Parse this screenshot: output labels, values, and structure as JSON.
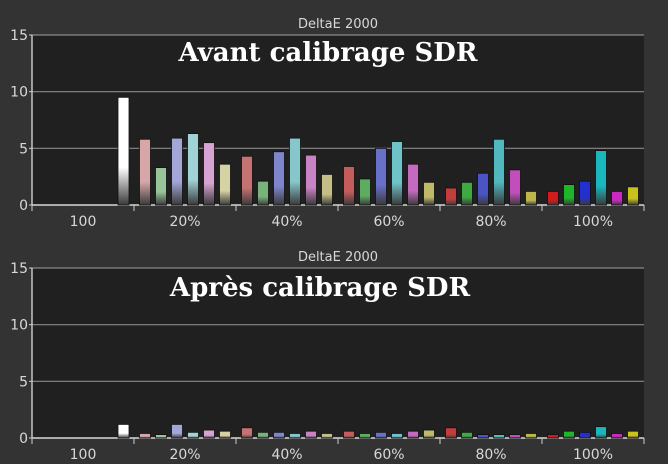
{
  "chart_data": [
    {
      "type": "bar",
      "title": "DeltaE 2000",
      "annotation": "Avant calibrage SDR",
      "ylim": [
        0,
        15
      ],
      "yticks": [
        0,
        5,
        10,
        15
      ],
      "grid": true,
      "groups": [
        {
          "label": "100",
          "values": [
            9.5
          ],
          "colors": [
            "#ffffff"
          ]
        },
        {
          "label": "20%",
          "values": [
            5.8,
            3.3,
            5.9,
            6.3,
            5.5,
            3.6
          ],
          "colors": [
            "#d7a7a7",
            "#98c49a",
            "#a2a7d7",
            "#a0d2d6",
            "#d7a3d3",
            "#d5d2a4"
          ]
        },
        {
          "label": "40%",
          "values": [
            4.3,
            2.1,
            4.7,
            5.9,
            4.4,
            2.7
          ],
          "colors": [
            "#c47272",
            "#79b37c",
            "#7e85cb",
            "#86c7cc",
            "#c883c4",
            "#c3bf86"
          ]
        },
        {
          "label": "60%",
          "values": [
            3.4,
            2.3,
            5.0,
            5.6,
            3.6,
            2.0
          ],
          "colors": [
            "#c45c5c",
            "#5cac61",
            "#6870c8",
            "#6fc2c8",
            "#c46bbf",
            "#bfba6a"
          ]
        },
        {
          "label": "80%",
          "values": [
            1.5,
            2.0,
            2.8,
            5.8,
            3.1,
            1.2
          ],
          "colors": [
            "#c33d3d",
            "#3fa943",
            "#4a54c4",
            "#51b8bf",
            "#c14fbb",
            "#bdb64c"
          ]
        },
        {
          "label": "100%",
          "values": [
            1.2,
            1.8,
            2.1,
            4.8,
            1.2,
            1.6
          ],
          "colors": [
            "#d01c1c",
            "#1fb52a",
            "#2330d0",
            "#1ab7bd",
            "#c82ac1",
            "#c9c21c"
          ]
        }
      ]
    },
    {
      "type": "bar",
      "title": "DeltaE 2000",
      "annotation": "Après calibrage SDR",
      "ylim": [
        0,
        15
      ],
      "yticks": [
        0,
        5,
        10,
        15
      ],
      "grid": true,
      "groups": [
        {
          "label": "100",
          "values": [
            1.2
          ],
          "colors": [
            "#ffffff"
          ]
        },
        {
          "label": "20%",
          "values": [
            0.4,
            0.3,
            1.2,
            0.5,
            0.7,
            0.6
          ],
          "colors": [
            "#d7a7a7",
            "#98c49a",
            "#a2a7d7",
            "#a0d2d6",
            "#d7a3d3",
            "#d5d2a4"
          ]
        },
        {
          "label": "40%",
          "values": [
            0.9,
            0.5,
            0.5,
            0.4,
            0.6,
            0.4
          ],
          "colors": [
            "#c47272",
            "#79b37c",
            "#7e85cb",
            "#86c7cc",
            "#c883c4",
            "#c3bf86"
          ]
        },
        {
          "label": "60%",
          "values": [
            0.6,
            0.4,
            0.5,
            0.4,
            0.6,
            0.7
          ],
          "colors": [
            "#c45c5c",
            "#5cac61",
            "#6870c8",
            "#6fc2c8",
            "#c46bbf",
            "#bfba6a"
          ]
        },
        {
          "label": "80%",
          "values": [
            0.9,
            0.5,
            0.3,
            0.3,
            0.3,
            0.4
          ],
          "colors": [
            "#c33d3d",
            "#3fa943",
            "#4a54c4",
            "#51b8bf",
            "#c14fbb",
            "#bdb64c"
          ]
        },
        {
          "label": "100%",
          "values": [
            0.3,
            0.6,
            0.5,
            1.0,
            0.4,
            0.6
          ],
          "colors": [
            "#d01c1c",
            "#1fb52a",
            "#2330d0",
            "#1ab7bd",
            "#c82ac1",
            "#c9c21c"
          ]
        }
      ]
    }
  ]
}
